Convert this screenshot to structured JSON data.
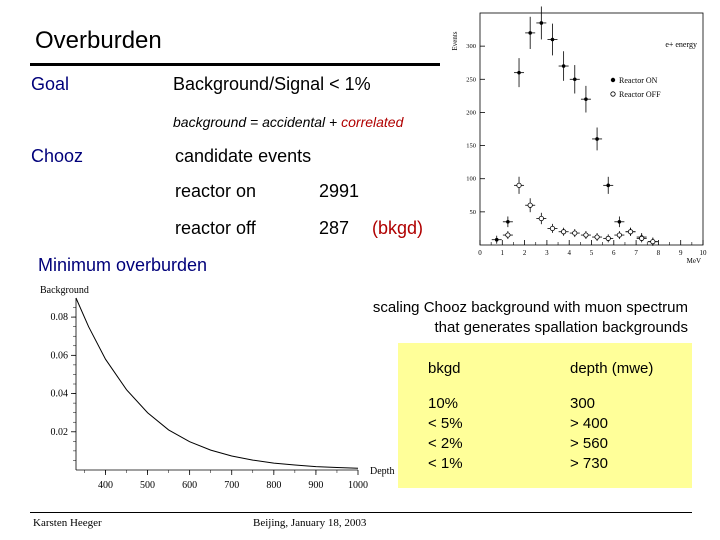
{
  "slide": {
    "title": "Overburden",
    "goal_label": "Goal",
    "goal_text": "Background/Signal < 1%",
    "background_eq": {
      "prefix": "background = accidental + ",
      "correlated": "correlated"
    },
    "chooz_label": "Chooz",
    "candidate_events": "candidate events",
    "reactor_on_label": "reactor on",
    "reactor_on_value": "2991",
    "reactor_off_label": "reactor off",
    "reactor_off_value": "287",
    "bkgd_tag": "(bkgd)",
    "min_overburden": "Minimum overburden",
    "scaling_note_line1": "scaling Chooz background with muon spectrum",
    "scaling_note_line2": "that generates spallation backgrounds",
    "footer_left": "Karsten Heeger",
    "footer_center": "Beijing, January 18, 2003"
  },
  "table": {
    "headers": [
      "bkgd",
      "depth (mwe)"
    ],
    "rows": [
      [
        "10%",
        "300"
      ],
      [
        "< 5%",
        "> 400"
      ],
      [
        "< 2%",
        "> 560"
      ],
      [
        "< 1%",
        "> 730"
      ]
    ]
  },
  "chart_data": [
    {
      "type": "scatter",
      "title": "",
      "xlabel": "MeV",
      "ylabel": "Events",
      "xlim": [
        0,
        10
      ],
      "ylim": [
        0,
        350
      ],
      "xticks": [
        "0",
        "1",
        "2",
        "3",
        "4",
        "5",
        "6",
        "7",
        "8",
        "9",
        "10"
      ],
      "yticks": [
        "50",
        "100",
        "150",
        "200",
        "250",
        "300"
      ],
      "annotation": "e+ energy",
      "legend_position": "top-right",
      "series": [
        {
          "name": "Reactor ON",
          "marker": "filled",
          "x": [
            0.75,
            1.25,
            1.75,
            2.25,
            2.75,
            3.25,
            3.75,
            4.25,
            4.75,
            5.25,
            5.75,
            6.25,
            6.75,
            7.25,
            7.75
          ],
          "y": [
            8,
            35,
            260,
            320,
            335,
            310,
            270,
            250,
            220,
            160,
            90,
            35,
            20,
            12,
            5
          ]
        },
        {
          "name": "Reactor OFF",
          "marker": "open",
          "x": [
            1.25,
            1.75,
            2.25,
            2.75,
            3.25,
            3.75,
            4.25,
            4.75,
            5.25,
            5.75,
            6.25,
            6.75,
            7.25,
            7.75
          ],
          "y": [
            15,
            90,
            60,
            40,
            25,
            20,
            18,
            15,
            12,
            10,
            15,
            20,
            10,
            5
          ]
        }
      ]
    },
    {
      "type": "line",
      "title": "",
      "xlabel": "Depth",
      "ylabel": "Background",
      "xlim": [
        330,
        1000
      ],
      "ylim": [
        0,
        0.09
      ],
      "xticks": [
        "400",
        "500",
        "600",
        "700",
        "800",
        "900",
        "1000"
      ],
      "yticks": [
        "0.02",
        "0.04",
        "0.06",
        "0.08"
      ],
      "series": [
        {
          "name": "",
          "x": [
            330,
            360,
            400,
            450,
            500,
            550,
            600,
            650,
            700,
            750,
            800,
            850,
            900,
            950,
            1000
          ],
          "y": [
            0.09,
            0.075,
            0.058,
            0.042,
            0.03,
            0.021,
            0.0148,
            0.0104,
            0.0073,
            0.0052,
            0.0036,
            0.0026,
            0.0018,
            0.0013,
            0.0009
          ]
        }
      ]
    }
  ]
}
